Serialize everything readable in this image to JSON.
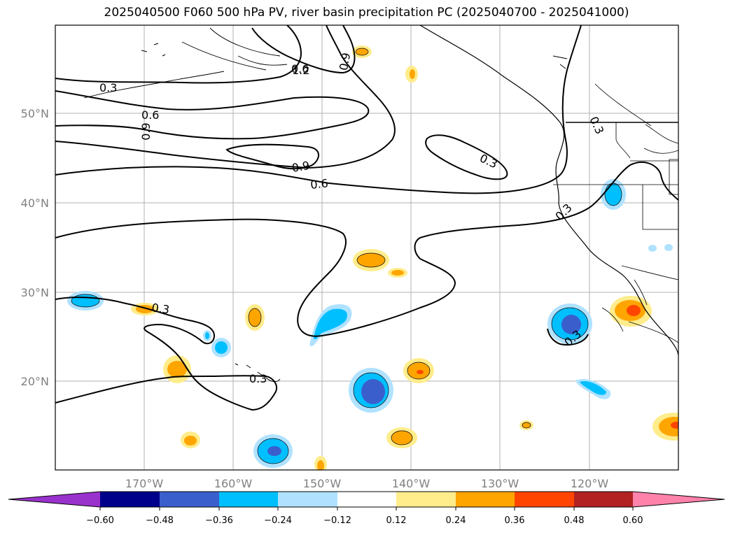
{
  "title": "2025040500 F060 500 hPa PV, river basin precipitation PC (2025040700 - 2025041000)",
  "map": {
    "lon_labels": [
      "170°W",
      "160°W",
      "150°W",
      "140°W",
      "130°W",
      "120°W"
    ],
    "lat_labels": [
      "50°N",
      "40°N",
      "30°N",
      "20°N"
    ],
    "contour_labels": [
      "0.3",
      "0.6",
      "0.9",
      "0.6",
      "1.2",
      "0.9",
      "0.9",
      "0.6",
      "0.3",
      "0.3",
      "0.3",
      "0.3",
      "0.3",
      "0.3"
    ]
  },
  "colorbar": {
    "ticks": [
      "−0.60",
      "−0.48",
      "−0.36",
      "−0.24",
      "−0.12",
      "0.12",
      "0.24",
      "0.36",
      "0.48",
      "0.60"
    ],
    "colors": [
      "#9932cc",
      "#00008b",
      "#3a5fcd",
      "#00bfff",
      "#b0e2ff",
      "#ffffff",
      "#ffec8b",
      "#ffa500",
      "#ff4500",
      "#b22222",
      "#ff82ab"
    ]
  }
}
